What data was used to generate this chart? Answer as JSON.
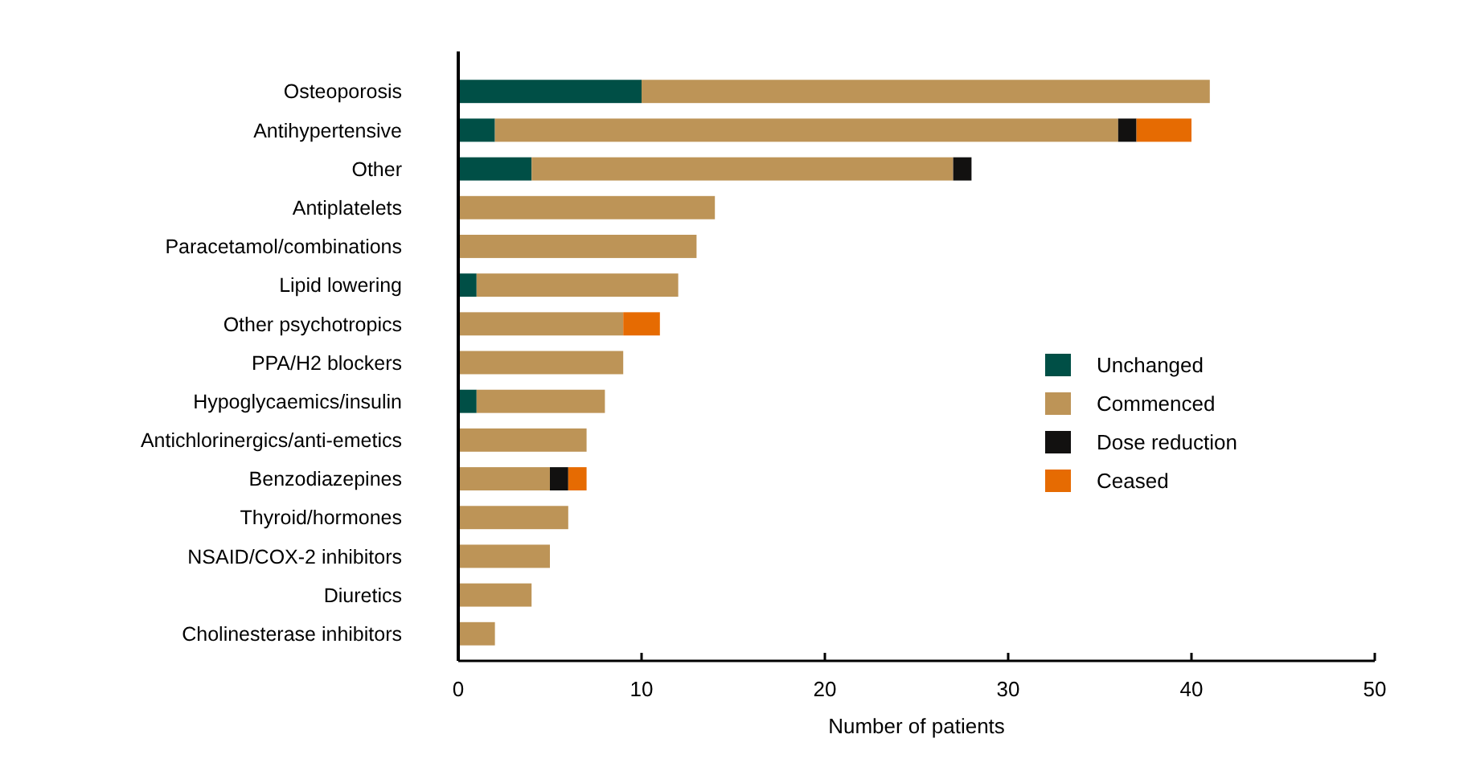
{
  "chart_data": {
    "type": "bar",
    "orientation": "horizontal",
    "stacked": true,
    "xlabel": "Number of patients",
    "categories": [
      "Osteoporosis",
      "Antihypertensive",
      "Other",
      "Antiplatelets",
      "Paracetamol/combinations",
      "Lipid lowering",
      "Other psychotropics",
      "PPA/H2 blockers",
      "Hypoglycaemics/insulin",
      "Antichlorinergics/anti-emetics",
      "Benzodiazepines",
      "Thyroid/hormones",
      "NSAID/COX-2 inhibitors",
      "Diuretics",
      "Cholinesterase inhibitors"
    ],
    "series": [
      {
        "name": "Unchanged",
        "color": "#004f46",
        "values": [
          10,
          2,
          4,
          null,
          null,
          1,
          null,
          null,
          1,
          null,
          null,
          null,
          null,
          null,
          null
        ]
      },
      {
        "name": "Commenced",
        "color": "#bd9457",
        "values": [
          31,
          34,
          23,
          14,
          13,
          11,
          9,
          9,
          7,
          7,
          5,
          6,
          5,
          4,
          2
        ]
      },
      {
        "name": "Dose reduction",
        "color": "#121110",
        "values": [
          null,
          1,
          1,
          null,
          null,
          null,
          null,
          null,
          null,
          null,
          1,
          null,
          null,
          null,
          null
        ]
      },
      {
        "name": "Ceased",
        "color": "#e66b02",
        "values": [
          null,
          3,
          null,
          null,
          null,
          null,
          2,
          null,
          null,
          null,
          1,
          null,
          null,
          null,
          null
        ]
      }
    ],
    "xlim": [
      0,
      50
    ],
    "xticks": [
      0,
      10,
      20,
      30,
      40,
      50
    ],
    "grid": false,
    "legend": "right"
  }
}
